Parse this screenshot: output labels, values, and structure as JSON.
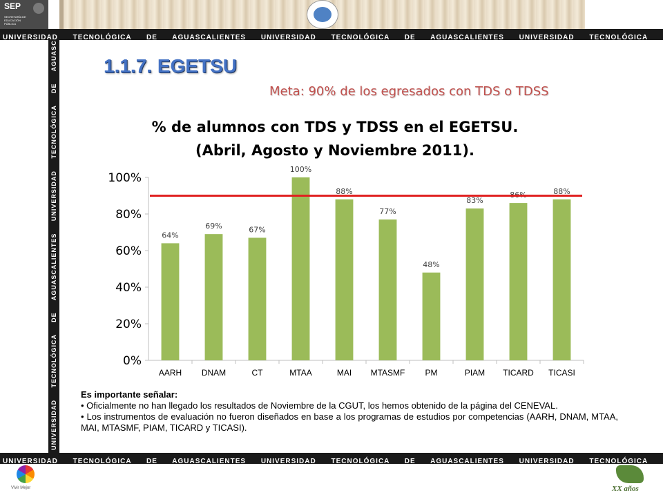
{
  "banner": {
    "sep_name": "SEP",
    "sep_sub": "SECRETARÍA DE EDUCACIÓN PÚBLICA",
    "band_text": "UNIVERSIDAD TECNOLÓGICA DE AGUASCALIENTES  UNIVERSIDAD TECNOLÓGICA DE AGUASCALIENTES  UNIVERSIDAD TECNOLÓGICA DE AGUASCALIENTES",
    "vertical_text": "UNIVERSIDAD TECNOLÓGICA DE AGUASCALIENTES  UNIVERSIDAD TECNOLÓGICA DE AGUASCALIENTES  UNIVERSIDAD TECNOLÓGICA DE AGUASCALIENTES"
  },
  "slide": {
    "title": "1.1.7.  EGETSU",
    "meta": "Meta: 90% de los egresados con TDS o TDSS"
  },
  "chart_data": {
    "type": "bar",
    "title_line1": "% de alumnos con TDS y TDSS en el EGETSU.",
    "title_line2": "(Abril, Agosto y Noviembre 2011).",
    "categories": [
      "AARH",
      "DNAM",
      "CT",
      "MTAA",
      "MAI",
      "MTASMF",
      "PM",
      "PIAM",
      "TICARD",
      "TICASI"
    ],
    "values": [
      64,
      69,
      67,
      100,
      88,
      77,
      48,
      83,
      86,
      88
    ],
    "data_labels": [
      "64%",
      "69%",
      "67%",
      "100%",
      "88%",
      "77%",
      "48%",
      "83%",
      "86%",
      "88%"
    ],
    "y_ticks": [
      0,
      20,
      40,
      60,
      80,
      100
    ],
    "y_tick_labels": [
      "0%",
      "20%",
      "40%",
      "60%",
      "80%",
      "100%"
    ],
    "ylim": [
      0,
      100
    ],
    "target_line": 90,
    "bar_color": "#9bbb59",
    "target_color": "#e02020",
    "grid": false,
    "legend": "none"
  },
  "notes": {
    "heading": "Es importante señalar:",
    "items": [
      "• Oficialmente no han llegado los resultados de Noviembre de la CGUT, los hemos obtenido de la página del CENEVAL.",
      "• Los instrumentos de evaluación no  fueron diseñados en base a los programas de estudios por competencias (AARH, DNAM, MTAA, MAI, MTASMF, PIAM, TICARD y TICASI)."
    ]
  },
  "footer": {
    "vivir_label": "Vivir Mejor",
    "xx_label": "XX años"
  }
}
